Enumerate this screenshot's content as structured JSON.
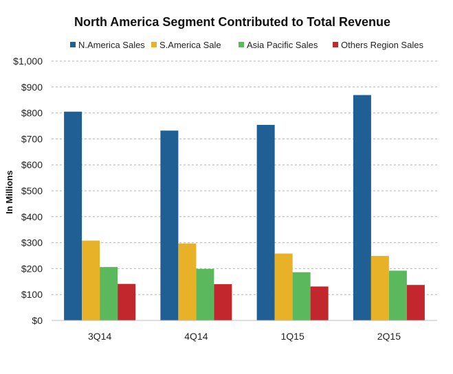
{
  "chart_data": {
    "type": "bar",
    "title": "North America Segment Contributed to Total Revenue",
    "xlabel": "",
    "ylabel": "In Millions",
    "categories": [
      "3Q14",
      "4Q14",
      "1Q15",
      "2Q15"
    ],
    "series": [
      {
        "name": "N.America Sales",
        "color": "#1f5f94",
        "values": [
          805,
          732,
          754,
          869
        ]
      },
      {
        "name": "S.America Sale",
        "color": "#e7b128",
        "values": [
          308,
          297,
          258,
          249
        ]
      },
      {
        "name": "Asia Pacific Sales",
        "color": "#5cb85c",
        "values": [
          206,
          199,
          186,
          192
        ]
      },
      {
        "name": "Others Region Sales",
        "color": "#c1272d",
        "values": [
          141,
          140,
          131,
          137
        ]
      }
    ],
    "ylim": [
      0,
      1000
    ],
    "yticks": [
      0,
      100,
      200,
      300,
      400,
      500,
      600,
      700,
      800,
      900,
      1000
    ],
    "ytick_labels": [
      "$0",
      "$100",
      "$200",
      "$300",
      "$400",
      "$500",
      "$600",
      "$700",
      "$800",
      "$900",
      "$1,000"
    ],
    "grid": true,
    "legend_position": "top"
  }
}
